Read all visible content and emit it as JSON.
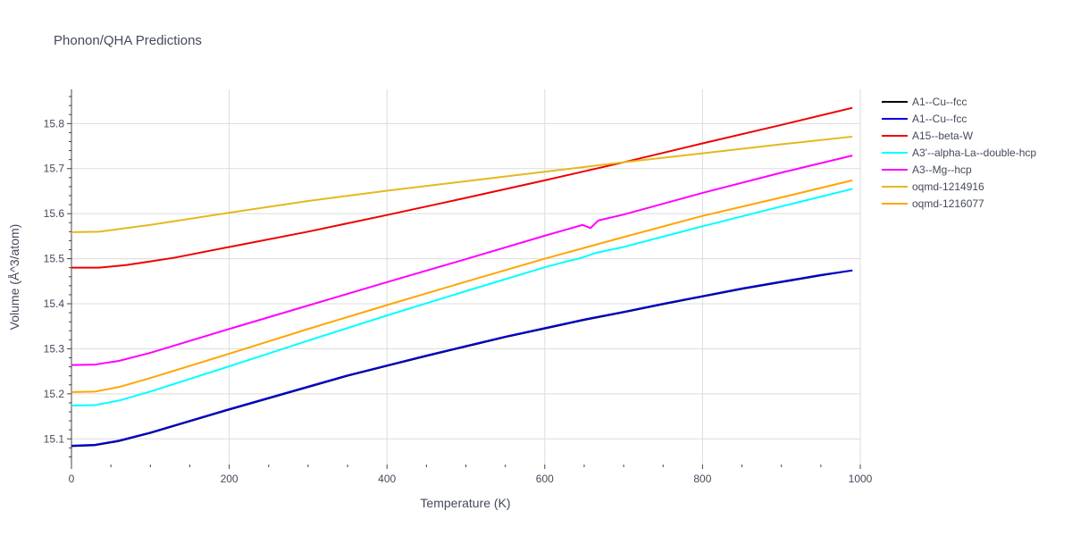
{
  "chart_data": {
    "type": "line",
    "title": "Phonon/QHA Predictions",
    "xlabel": "Temperature (K)",
    "ylabel": "Volume (Å^3/atom)",
    "xlim": [
      0,
      1000
    ],
    "ylim": [
      15.043,
      15.876
    ],
    "x_ticks": [
      0,
      200,
      400,
      600,
      800,
      1000
    ],
    "y_ticks": [
      15.1,
      15.2,
      15.3,
      15.4,
      15.5,
      15.6,
      15.7,
      15.8
    ],
    "grid": true,
    "legend_position": "right",
    "series": [
      {
        "name": "A1--Cu--fcc",
        "color": "#000000",
        "x": [
          0,
          30,
          60,
          100,
          150,
          200,
          250,
          300,
          350,
          400,
          450,
          500,
          550,
          600,
          650,
          700,
          750,
          800,
          850,
          900,
          950,
          990
        ],
        "y": [
          15.084,
          15.086,
          15.095,
          15.113,
          15.139,
          15.165,
          15.19,
          15.215,
          15.24,
          15.262,
          15.284,
          15.305,
          15.326,
          15.345,
          15.364,
          15.381,
          15.399,
          15.416,
          15.433,
          15.448,
          15.463,
          15.474
        ]
      },
      {
        "name": "A1--Cu--fcc",
        "color": "#0000dd",
        "x": [
          0,
          30,
          60,
          100,
          150,
          200,
          250,
          300,
          350,
          400,
          450,
          500,
          550,
          600,
          650,
          700,
          750,
          800,
          850,
          900,
          950,
          990
        ],
        "y": [
          15.085,
          15.087,
          15.096,
          15.114,
          15.14,
          15.166,
          15.191,
          15.216,
          15.241,
          15.263,
          15.285,
          15.306,
          15.327,
          15.346,
          15.365,
          15.382,
          15.4,
          15.417,
          15.434,
          15.449,
          15.464,
          15.474
        ]
      },
      {
        "name": "A15--beta-W",
        "color": "#ee0000",
        "x": [
          0,
          35,
          70,
          100,
          130,
          200,
          300,
          400,
          500,
          600,
          700,
          800,
          900,
          990
        ],
        "y": [
          15.48,
          15.48,
          15.486,
          15.494,
          15.502,
          15.526,
          15.56,
          15.597,
          15.635,
          15.674,
          15.714,
          15.756,
          15.797,
          15.835
        ]
      },
      {
        "name": "A3'--alpha-La--double-hcp",
        "color": "#00ffff",
        "x": [
          0,
          30,
          60,
          100,
          200,
          300,
          400,
          500,
          600,
          630,
          645,
          665,
          700,
          800,
          900,
          990
        ],
        "y": [
          15.174,
          15.175,
          15.185,
          15.205,
          15.261,
          15.318,
          15.374,
          15.428,
          15.481,
          15.495,
          15.501,
          15.513,
          15.526,
          15.572,
          15.616,
          15.655
        ]
      },
      {
        "name": "A3--Mg--hcp",
        "color": "#ff00ff",
        "x": [
          0,
          30,
          60,
          100,
          200,
          300,
          400,
          500,
          600,
          648,
          658,
          668,
          700,
          800,
          900,
          990
        ],
        "y": [
          15.264,
          15.265,
          15.273,
          15.291,
          15.344,
          15.396,
          15.448,
          15.499,
          15.551,
          15.575,
          15.568,
          15.585,
          15.598,
          15.646,
          15.691,
          15.729
        ]
      },
      {
        "name": "oqmd-1214916",
        "color": "#e5b81d",
        "x": [
          0,
          35,
          100,
          200,
          300,
          400,
          500,
          600,
          700,
          800,
          900,
          990
        ],
        "y": [
          15.559,
          15.56,
          15.575,
          15.602,
          15.628,
          15.651,
          15.672,
          15.693,
          15.714,
          15.734,
          15.754,
          15.771
        ]
      },
      {
        "name": "oqmd-1216077",
        "color": "#ffa500",
        "x": [
          0,
          30,
          60,
          100,
          200,
          300,
          400,
          500,
          600,
          700,
          800,
          900,
          990
        ],
        "y": [
          15.204,
          15.205,
          15.215,
          15.235,
          15.289,
          15.344,
          15.397,
          15.449,
          15.5,
          15.548,
          15.595,
          15.636,
          15.674
        ]
      }
    ]
  }
}
